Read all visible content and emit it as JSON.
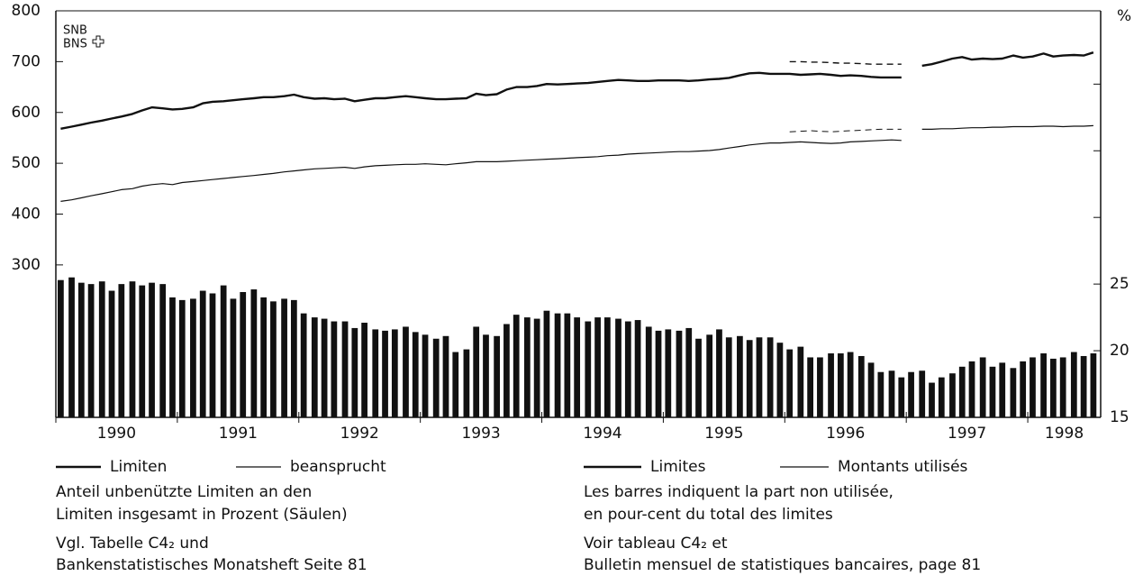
{
  "chart_data": {
    "type": "bar-line",
    "logo": [
      "SNB",
      "BNS"
    ],
    "y2label": "%",
    "xlim": [
      1990,
      1998.6
    ],
    "xticks": [
      1990,
      1991,
      1992,
      1993,
      1994,
      1995,
      1996,
      1997,
      1998
    ],
    "years": [
      "1990",
      "1991",
      "1992",
      "1993",
      "1994",
      "1995",
      "1996",
      "1997",
      "1998"
    ],
    "ylim": [
      0,
      800
    ],
    "yticks": [
      300,
      400,
      500,
      600,
      700,
      800
    ],
    "y2lim": [
      15,
      45.5
    ],
    "y2ticks": [
      15,
      20,
      25
    ],
    "y2ticks_unlabeled": [
      30,
      35,
      40
    ],
    "x": [
      1990.04,
      1990.13,
      1990.21,
      1990.29,
      1990.38,
      1990.46,
      1990.54,
      1990.63,
      1990.71,
      1990.79,
      1990.88,
      1990.96,
      1991.04,
      1991.13,
      1991.21,
      1991.29,
      1991.38,
      1991.46,
      1991.54,
      1991.63,
      1991.71,
      1991.79,
      1991.88,
      1991.96,
      1992.04,
      1992.13,
      1992.21,
      1992.29,
      1992.38,
      1992.46,
      1992.54,
      1992.63,
      1992.71,
      1992.79,
      1992.88,
      1992.96,
      1993.04,
      1993.13,
      1993.21,
      1993.29,
      1993.38,
      1993.46,
      1993.54,
      1993.63,
      1993.71,
      1993.79,
      1993.88,
      1993.96,
      1994.04,
      1994.13,
      1994.21,
      1994.29,
      1994.38,
      1994.46,
      1994.54,
      1994.63,
      1994.71,
      1994.79,
      1994.88,
      1994.96,
      1995.04,
      1995.13,
      1995.21,
      1995.29,
      1995.38,
      1995.46,
      1995.54,
      1995.63,
      1995.71,
      1995.79,
      1995.88,
      1995.96,
      1996.04,
      1996.13,
      1996.21,
      1996.29,
      1996.38,
      1996.46,
      1996.54,
      1996.63,
      1996.71,
      1996.79,
      1996.88,
      1996.96,
      1997.04,
      1997.13,
      1997.21,
      1997.29,
      1997.38,
      1997.46,
      1997.54,
      1997.63,
      1997.71,
      1997.79,
      1997.88,
      1997.96,
      1998.04,
      1998.13,
      1998.21,
      1998.29,
      1998.38,
      1998.46,
      1998.54
    ],
    "series": [
      {
        "name": "Limiten",
        "legend_fr": "Limites",
        "kind": "line",
        "width": 2.4,
        "color": "#111",
        "values": [
          568,
          572,
          576,
          580,
          584,
          588,
          592,
          597,
          604,
          610,
          608,
          606,
          607,
          610,
          618,
          621,
          622,
          624,
          626,
          628,
          630,
          630,
          632,
          635,
          630,
          627,
          628,
          626,
          627,
          622,
          625,
          628,
          628,
          630,
          632,
          630,
          628,
          626,
          626,
          627,
          628,
          637,
          634,
          636,
          645,
          650,
          650,
          652,
          656,
          655,
          656,
          657,
          658,
          660,
          662,
          664,
          663,
          662,
          662,
          663,
          663,
          663,
          662,
          663,
          665,
          666,
          668,
          673,
          677,
          678,
          676,
          676,
          676,
          674,
          675,
          676,
          674,
          672,
          673,
          672,
          670,
          669,
          669,
          669,
          null,
          692,
          695,
          700,
          706,
          709,
          704,
          706,
          705,
          706,
          712,
          708,
          710,
          716,
          710,
          712,
          713,
          712,
          718
        ]
      },
      {
        "name": "beansprucht",
        "legend_fr": "Montants utilisés",
        "kind": "line",
        "width": 1.2,
        "color": "#111",
        "values": [
          425,
          428,
          432,
          436,
          440,
          444,
          448,
          450,
          455,
          458,
          460,
          458,
          462,
          464,
          466,
          468,
          470,
          472,
          474,
          476,
          478,
          480,
          483,
          485,
          487,
          489,
          490,
          491,
          492,
          490,
          493,
          495,
          496,
          497,
          498,
          498,
          499,
          498,
          497,
          499,
          501,
          503,
          503,
          503,
          504,
          505,
          506,
          507,
          508,
          509,
          510,
          511,
          512,
          513,
          515,
          516,
          518,
          519,
          520,
          521,
          522,
          523,
          523,
          524,
          525,
          527,
          530,
          533,
          536,
          538,
          540,
          540,
          541,
          542,
          541,
          540,
          539,
          540,
          542,
          543,
          544,
          545,
          546,
          545,
          null,
          567,
          567,
          568,
          568,
          569,
          570,
          570,
          571,
          571,
          572,
          572,
          572,
          573,
          573,
          572,
          573,
          573,
          574
        ]
      },
      {
        "kind": "line",
        "dashed": true,
        "width": 1.4,
        "color": "#111",
        "values": [
          null,
          null,
          null,
          null,
          null,
          null,
          null,
          null,
          null,
          null,
          null,
          null,
          null,
          null,
          null,
          null,
          null,
          null,
          null,
          null,
          null,
          null,
          null,
          null,
          null,
          null,
          null,
          null,
          null,
          null,
          null,
          null,
          null,
          null,
          null,
          null,
          null,
          null,
          null,
          null,
          null,
          null,
          null,
          null,
          null,
          null,
          null,
          null,
          null,
          null,
          null,
          null,
          null,
          null,
          null,
          null,
          null,
          null,
          null,
          null,
          null,
          null,
          null,
          null,
          null,
          null,
          null,
          null,
          null,
          null,
          null,
          null,
          700,
          700,
          699,
          699,
          698,
          697,
          697,
          696,
          695,
          695,
          695,
          695,
          null,
          null,
          null,
          null,
          null,
          null,
          null,
          null,
          null,
          null,
          null,
          null,
          null,
          null,
          null,
          null,
          null,
          null,
          null
        ]
      },
      {
        "kind": "line",
        "dashed": true,
        "width": 1,
        "color": "#111",
        "values": [
          null,
          null,
          null,
          null,
          null,
          null,
          null,
          null,
          null,
          null,
          null,
          null,
          null,
          null,
          null,
          null,
          null,
          null,
          null,
          null,
          null,
          null,
          null,
          null,
          null,
          null,
          null,
          null,
          null,
          null,
          null,
          null,
          null,
          null,
          null,
          null,
          null,
          null,
          null,
          null,
          null,
          null,
          null,
          null,
          null,
          null,
          null,
          null,
          null,
          null,
          null,
          null,
          null,
          null,
          null,
          null,
          null,
          null,
          null,
          null,
          null,
          null,
          null,
          null,
          null,
          null,
          null,
          null,
          null,
          null,
          null,
          null,
          562,
          563,
          564,
          563,
          562,
          563,
          564,
          565,
          566,
          567,
          567,
          567,
          null,
          null,
          null,
          null,
          null,
          null,
          null,
          null,
          null,
          null,
          null,
          null,
          null,
          null,
          null,
          null,
          null,
          null,
          null
        ]
      },
      {
        "kind": "bar",
        "axis": "y2",
        "color": "#111",
        "values": [
          25.3,
          25.5,
          25.1,
          25.0,
          25.2,
          24.5,
          25.0,
          25.2,
          24.9,
          25.1,
          25.0,
          24.0,
          23.8,
          23.9,
          24.5,
          24.3,
          24.9,
          23.9,
          24.4,
          24.6,
          24.0,
          23.7,
          23.9,
          23.8,
          22.8,
          22.5,
          22.4,
          22.2,
          22.2,
          21.7,
          22.1,
          21.6,
          21.5,
          21.6,
          21.8,
          21.4,
          21.2,
          20.9,
          21.1,
          19.9,
          20.1,
          21.8,
          21.2,
          21.1,
          22.0,
          22.7,
          22.5,
          22.4,
          23.0,
          22.8,
          22.8,
          22.5,
          22.2,
          22.5,
          22.5,
          22.4,
          22.2,
          22.3,
          21.8,
          21.5,
          21.6,
          21.5,
          21.7,
          20.9,
          21.2,
          21.6,
          21.0,
          21.1,
          20.8,
          21.0,
          21.0,
          20.6,
          20.1,
          20.3,
          19.5,
          19.5,
          19.8,
          19.8,
          19.9,
          19.6,
          19.1,
          18.4,
          18.5,
          18.0,
          18.4,
          18.5,
          17.6,
          18.0,
          18.3,
          18.8,
          19.2,
          19.5,
          18.8,
          19.1,
          18.7,
          19.2,
          19.5,
          19.8,
          19.4,
          19.5,
          19.9,
          19.6,
          19.8
        ]
      }
    ],
    "notes_de": [
      "Anteil unbenützte Limiten an den",
      "Limiten insgesamt in Prozent (Säulen)",
      "Vgl. Tabelle C4₂ und",
      "Bankenstatistisches Monatsheft Seite 81"
    ],
    "notes_fr": [
      "Les barres indiquent la part non utilisée,",
      "en pour-cent du total des limites",
      "Voir tableau C4₂ et",
      "Bulletin mensuel de statistiques bancaires, page 81"
    ]
  }
}
